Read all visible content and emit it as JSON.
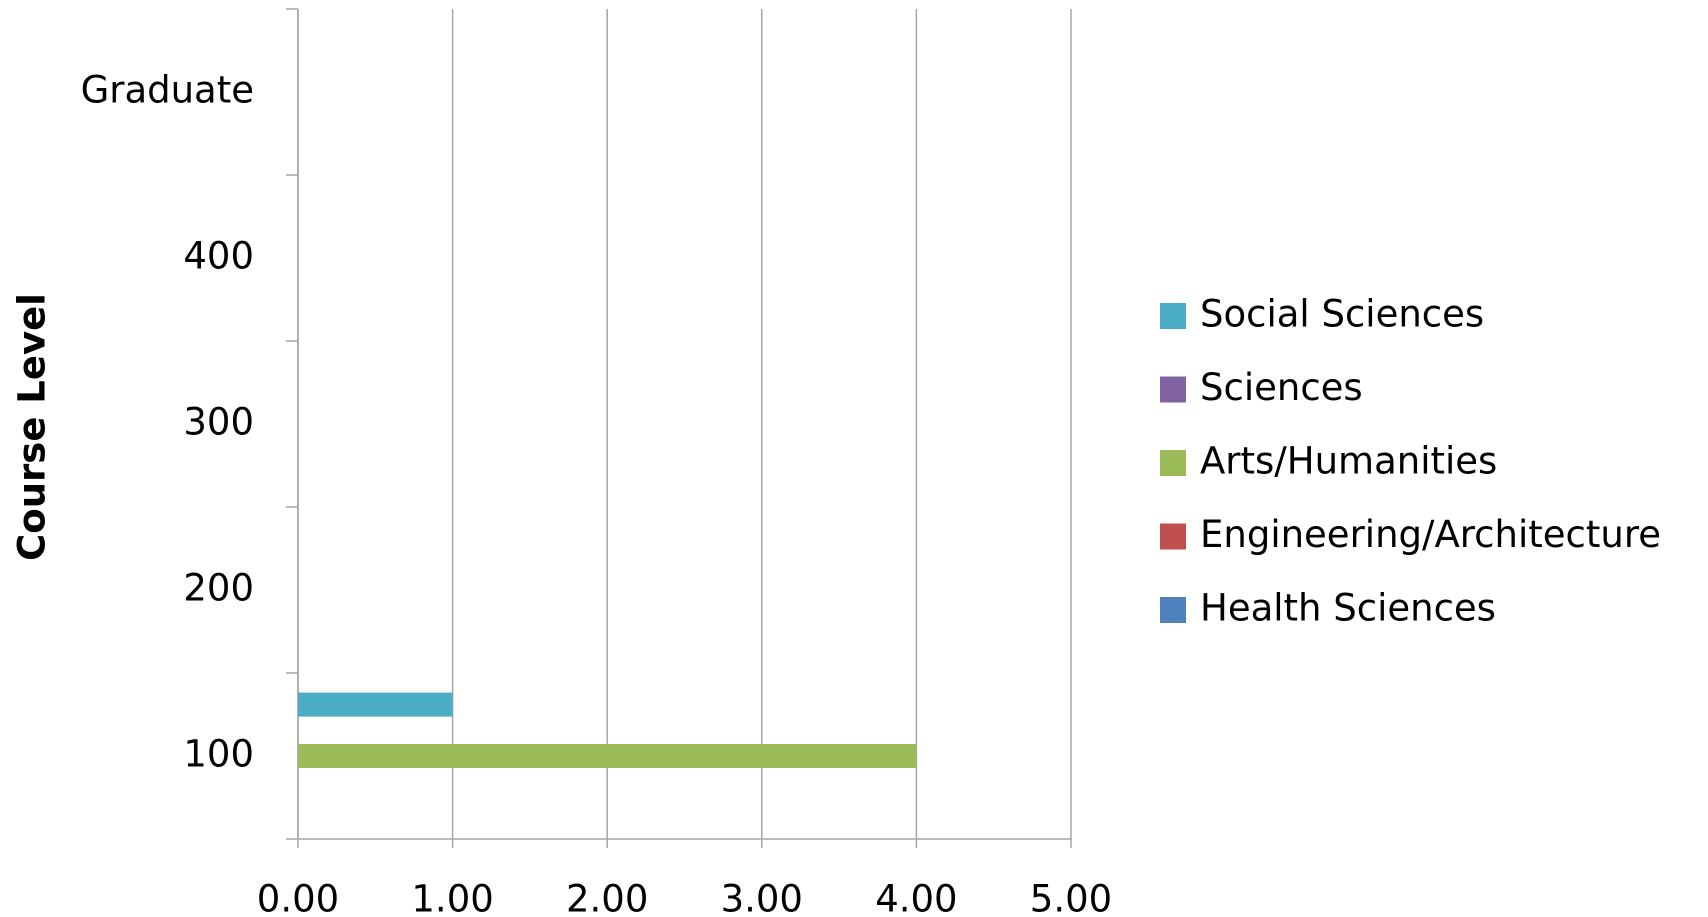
{
  "chart_data": {
    "type": "bar",
    "orientation": "horizontal",
    "y_axis_label": "Course Level",
    "categories": [
      "100",
      "200",
      "300",
      "400",
      "Graduate"
    ],
    "series": [
      {
        "name": "Social Sciences",
        "color": "#4bacc6",
        "values": [
          1,
          0,
          0,
          0,
          0
        ]
      },
      {
        "name": "Sciences",
        "color": "#8064a2",
        "values": [
          0,
          0,
          0,
          0,
          0
        ]
      },
      {
        "name": "Arts/Humanities",
        "color": "#9bbb59",
        "values": [
          4,
          0,
          0,
          0,
          0
        ]
      },
      {
        "name": "Engineering/Architecture",
        "color": "#c0504d",
        "values": [
          0,
          0,
          0,
          0,
          0
        ]
      },
      {
        "name": "Health Sciences",
        "color": "#4f81bd",
        "values": [
          0,
          0,
          0,
          0,
          0
        ]
      }
    ],
    "xlim": [
      0,
      5
    ],
    "xticks": [
      {
        "value": 0,
        "label": "0.00"
      },
      {
        "value": 1,
        "label": "1.00"
      },
      {
        "value": 2,
        "label": "2.00"
      },
      {
        "value": 3,
        "label": "3.00"
      },
      {
        "value": 4,
        "label": "4.00"
      },
      {
        "value": 5,
        "label": "5.00"
      }
    ],
    "grid": true,
    "legend": "right"
  }
}
